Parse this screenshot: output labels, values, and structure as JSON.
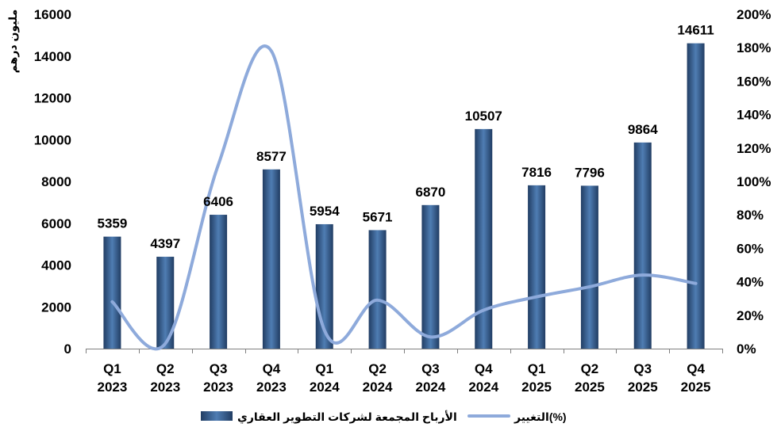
{
  "chart_data": {
    "type": "bar",
    "categories": [
      {
        "quarter": "Q1",
        "year": "2023"
      },
      {
        "quarter": "Q2",
        "year": "2023"
      },
      {
        "quarter": "Q3",
        "year": "2023"
      },
      {
        "quarter": "Q4",
        "year": "2023"
      },
      {
        "quarter": "Q1",
        "year": "2024"
      },
      {
        "quarter": "Q2",
        "year": "2024"
      },
      {
        "quarter": "Q3",
        "year": "2024"
      },
      {
        "quarter": "Q4",
        "year": "2024"
      },
      {
        "quarter": "Q1",
        "year": "2025"
      },
      {
        "quarter": "Q2",
        "year": "2025"
      },
      {
        "quarter": "Q3",
        "year": "2025"
      },
      {
        "quarter": "Q4",
        "year": "2025"
      }
    ],
    "series": [
      {
        "name": "الأرباح المجمعة لشركات التطوير العقاري",
        "type": "bar",
        "axis": "left",
        "color": "#2e5384",
        "highlight_color": "#4f7db3",
        "edge_color": "#213d63",
        "data_labels": true,
        "values": [
          5359,
          4397,
          6406,
          8577,
          5954,
          5671,
          6870,
          10507,
          7816,
          7796,
          9864,
          14611
        ]
      },
      {
        "name": "التغيير(%)",
        "type": "line",
        "axis": "right",
        "smooth": true,
        "color": "#8eaadb",
        "unit": "%",
        "values": [
          28,
          3,
          110,
          178,
          11,
          29,
          7,
          23,
          31,
          37,
          44,
          39
        ]
      }
    ],
    "ylabel": "مليون درهم",
    "ylim": [
      0,
      16000
    ],
    "yticks": [
      "0",
      "2000",
      "4000",
      "6000",
      "8000",
      "10000",
      "12000",
      "14000",
      "16000"
    ],
    "y2lim": [
      0,
      200
    ],
    "y2ticks": [
      "0%",
      "20%",
      "40%",
      "60%",
      "80%",
      "100%",
      "120%",
      "140%",
      "160%",
      "180%",
      "200%"
    ],
    "grid": false,
    "legend": "bottom",
    "axis_color": "#7f7f7f"
  }
}
